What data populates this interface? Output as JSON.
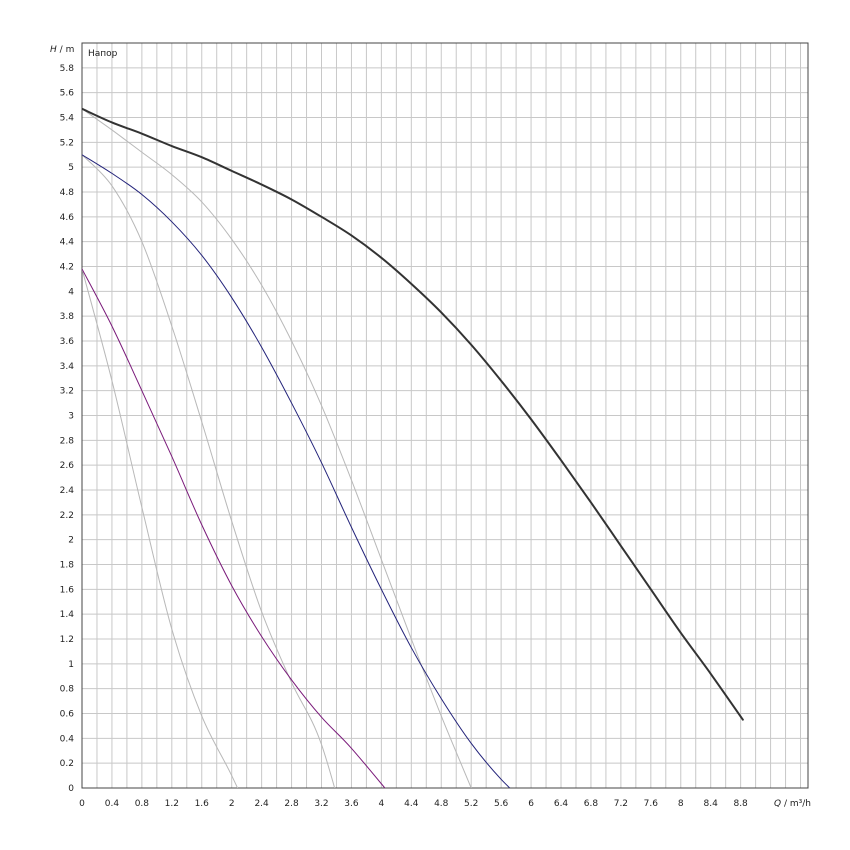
{
  "chart_data": {
    "type": "line",
    "title": "Напор",
    "ylabel_symbol": "H",
    "ylabel_unit": "m",
    "xlabel_symbol": "Q",
    "xlabel_unit": "m³/h",
    "xlim": [
      0,
      9.7
    ],
    "ylim": [
      0,
      6.0
    ],
    "x_ticks": [
      0,
      0.4,
      0.8,
      1.2,
      1.6,
      2,
      2.4,
      2.8,
      3.2,
      3.6,
      4,
      4.4,
      4.8,
      5.2,
      5.6,
      6,
      6.4,
      6.8,
      7.2,
      7.6,
      8,
      8.4,
      8.8
    ],
    "y_ticks": [
      0,
      0.2,
      0.4,
      0.6,
      0.8,
      1,
      1.2,
      1.4,
      1.6,
      1.8,
      2,
      2.2,
      2.4,
      2.6,
      2.8,
      3,
      3.2,
      3.4,
      3.6,
      3.8,
      4,
      4.2,
      4.4,
      4.6,
      4.8,
      5,
      5.2,
      5.4,
      5.6,
      5.8
    ],
    "x_tick_labels": [
      "0",
      "0.4",
      "0.8",
      "1.2",
      "1.6",
      "2",
      "2.4",
      "2.8",
      "3.2",
      "3.6",
      "4",
      "4.4",
      "4.8",
      "5.2",
      "5.6",
      "6",
      "6.4",
      "6.8",
      "7.2",
      "7.6",
      "8",
      "8.4",
      "8.8"
    ],
    "y_tick_labels": [
      "0",
      "0.2",
      "0.4",
      "0.6",
      "0.8",
      "1",
      "1.2",
      "1.4",
      "1.6",
      "1.8",
      "2",
      "2.2",
      "2.4",
      "2.6",
      "2.8",
      "3",
      "3.2",
      "3.4",
      "3.6",
      "3.8",
      "4",
      "4.2",
      "4.4",
      "4.6",
      "4.8",
      "5",
      "5.2",
      "5.4",
      "5.6",
      "5.8"
    ],
    "grid": true,
    "series": [
      {
        "color": "#333333",
        "stroke_width": 2,
        "x": [
          0,
          0.4,
          0.8,
          1.2,
          1.6,
          2,
          2.4,
          2.8,
          3.2,
          3.6,
          4,
          4.4,
          4.8,
          5.2,
          5.6,
          6,
          6.4,
          6.8,
          7.2,
          7.6,
          8,
          8.4,
          8.83
        ],
        "y": [
          5.47,
          5.36,
          5.27,
          5.17,
          5.08,
          4.97,
          4.86,
          4.74,
          4.6,
          4.45,
          4.27,
          4.06,
          3.83,
          3.57,
          3.28,
          2.97,
          2.64,
          2.3,
          1.95,
          1.6,
          1.25,
          0.92,
          0.55
        ]
      },
      {
        "color": "#23237a",
        "stroke_width": 1,
        "x": [
          0,
          0.4,
          0.8,
          1.2,
          1.6,
          2,
          2.4,
          2.8,
          3.2,
          3.6,
          4,
          4.4,
          4.8,
          5.2,
          5.6,
          6.02
        ],
        "y": [
          5.1,
          4.95,
          4.78,
          4.56,
          4.29,
          3.95,
          3.55,
          3.1,
          2.62,
          2.1,
          1.6,
          1.13,
          0.72,
          0.36,
          0.07,
          -0.17
        ]
      },
      {
        "color": "#7a1a7a",
        "stroke_width": 1,
        "x": [
          0,
          0.4,
          0.8,
          1.2,
          1.6,
          2,
          2.4,
          2.8,
          3.2,
          3.6,
          4.17
        ],
        "y": [
          4.18,
          3.72,
          3.2,
          2.67,
          2.12,
          1.63,
          1.22,
          0.87,
          0.57,
          0.32,
          -0.09
        ]
      },
      {
        "color": "#b8b8b8",
        "stroke_width": 1,
        "x": [
          0,
          0.4,
          0.8,
          1.2,
          1.6,
          2,
          2.4,
          2.8,
          3.2,
          3.6,
          4,
          4.4,
          4.8,
          5.2,
          5.5
        ],
        "y": [
          5.47,
          5.3,
          5.12,
          4.94,
          4.72,
          4.42,
          4.05,
          3.6,
          3.08,
          2.48,
          1.84,
          1.2,
          0.58,
          0.0,
          -0.44
        ]
      },
      {
        "color": "#b8b8b8",
        "stroke_width": 1,
        "x": [
          0,
          0.4,
          0.8,
          1.2,
          1.6,
          2,
          2.4,
          2.8,
          3.2,
          3.66
        ],
        "y": [
          5.1,
          4.85,
          4.4,
          3.72,
          2.95,
          2.15,
          1.42,
          0.85,
          0.35,
          -0.63
        ]
      },
      {
        "color": "#b8b8b8",
        "stroke_width": 1,
        "x": [
          0,
          0.4,
          0.8,
          1.2,
          1.6,
          2,
          2.42
        ],
        "y": [
          4.18,
          3.28,
          2.26,
          1.28,
          0.58,
          0.1,
          -0.45
        ]
      }
    ]
  }
}
